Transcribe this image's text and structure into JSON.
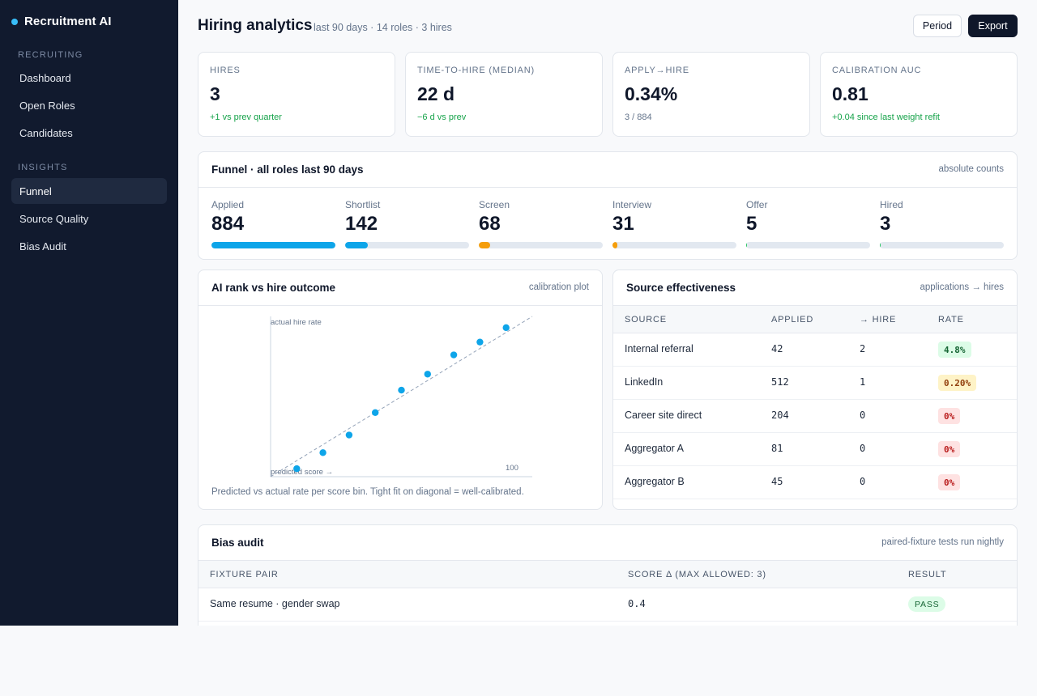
{
  "sidebar": {
    "brand": "Recruitment AI",
    "sections": [
      {
        "title": "RECRUITING",
        "items": [
          {
            "label": "Dashboard"
          },
          {
            "label": "Open Roles"
          },
          {
            "label": "Candidates"
          }
        ]
      },
      {
        "title": "INSIGHTS",
        "items": [
          {
            "label": "Funnel",
            "active": true
          },
          {
            "label": "Source Quality"
          },
          {
            "label": "Bias Audit"
          }
        ]
      }
    ]
  },
  "header": {
    "title": "Hiring analytics",
    "subtitle": "last 90 days · 14 roles · 3 hires",
    "period_label": "Period",
    "export_label": "Export"
  },
  "kpis": [
    {
      "label": "HIRES",
      "value": "3",
      "note": "+1 vs prev quarter",
      "tone": "positive"
    },
    {
      "label": "TIME-TO-HIRE (MEDIAN)",
      "value": "22 d",
      "note": "−6 d vs prev",
      "tone": "positive"
    },
    {
      "label": "APPLY→HIRE",
      "value": "0.34%",
      "note": "3 / 884",
      "tone": "neutral"
    },
    {
      "label": "CALIBRATION AUC",
      "value": "0.81",
      "note": "+0.04 since last weight refit",
      "tone": "positive"
    }
  ],
  "funnel": {
    "title": "Funnel · all roles last 90 days",
    "meta": "absolute counts",
    "stages": [
      {
        "label": "Applied",
        "value": "884",
        "color": "#0ea5e9"
      },
      {
        "label": "Shortlist",
        "value": "142",
        "color": "#0ea5e9"
      },
      {
        "label": "Screen",
        "value": "68",
        "color": "#f59e0b"
      },
      {
        "label": "Interview",
        "value": "31",
        "color": "#f59e0b"
      },
      {
        "label": "Offer",
        "value": "5",
        "color": "#22c55e"
      },
      {
        "label": "Hired",
        "value": "3",
        "color": "#22c55e"
      }
    ],
    "max": 884
  },
  "calibration": {
    "title": "AI rank vs hire outcome",
    "meta": "calibration plot",
    "caption": "Predicted vs actual rate per score bin. Tight fit on diagonal = well-calibrated.",
    "chart_data": {
      "type": "scatter",
      "ylabel": "actual hire rate",
      "xlabel": "predicted score →",
      "x_tick_label": "100",
      "xlim": [
        0,
        100
      ],
      "ylim": [
        0,
        100
      ],
      "reference_line": "diagonal",
      "point_color": "#0ea5e9",
      "x": [
        10,
        20,
        30,
        40,
        50,
        60,
        70,
        80,
        90
      ],
      "y": [
        5,
        15,
        26,
        40,
        54,
        64,
        76,
        84,
        93
      ]
    }
  },
  "sources": {
    "title": "Source effectiveness",
    "meta": "applications → hires",
    "columns": [
      "SOURCE",
      "APPLIED",
      "→ HIRE",
      "RATE"
    ],
    "rows": [
      {
        "source": "Internal referral",
        "applied": "42",
        "hire": "2",
        "rate": "4.8%",
        "tone": "good"
      },
      {
        "source": "LinkedIn",
        "applied": "512",
        "hire": "1",
        "rate": "0.20%",
        "tone": "warn"
      },
      {
        "source": "Career site direct",
        "applied": "204",
        "hire": "0",
        "rate": "0%",
        "tone": "bad"
      },
      {
        "source": "Aggregator A",
        "applied": "81",
        "hire": "0",
        "rate": "0%",
        "tone": "bad"
      },
      {
        "source": "Aggregator B",
        "applied": "45",
        "hire": "0",
        "rate": "0%",
        "tone": "bad"
      }
    ]
  },
  "bias": {
    "title": "Bias audit",
    "meta": "paired-fixture tests run nightly",
    "columns": [
      "FIXTURE PAIR",
      "SCORE Δ (MAX ALLOWED: 3)",
      "RESULT"
    ],
    "rows": [
      {
        "pair": "Same resume · gender swap",
        "delta": "0.4",
        "result": "PASS"
      }
    ]
  }
}
